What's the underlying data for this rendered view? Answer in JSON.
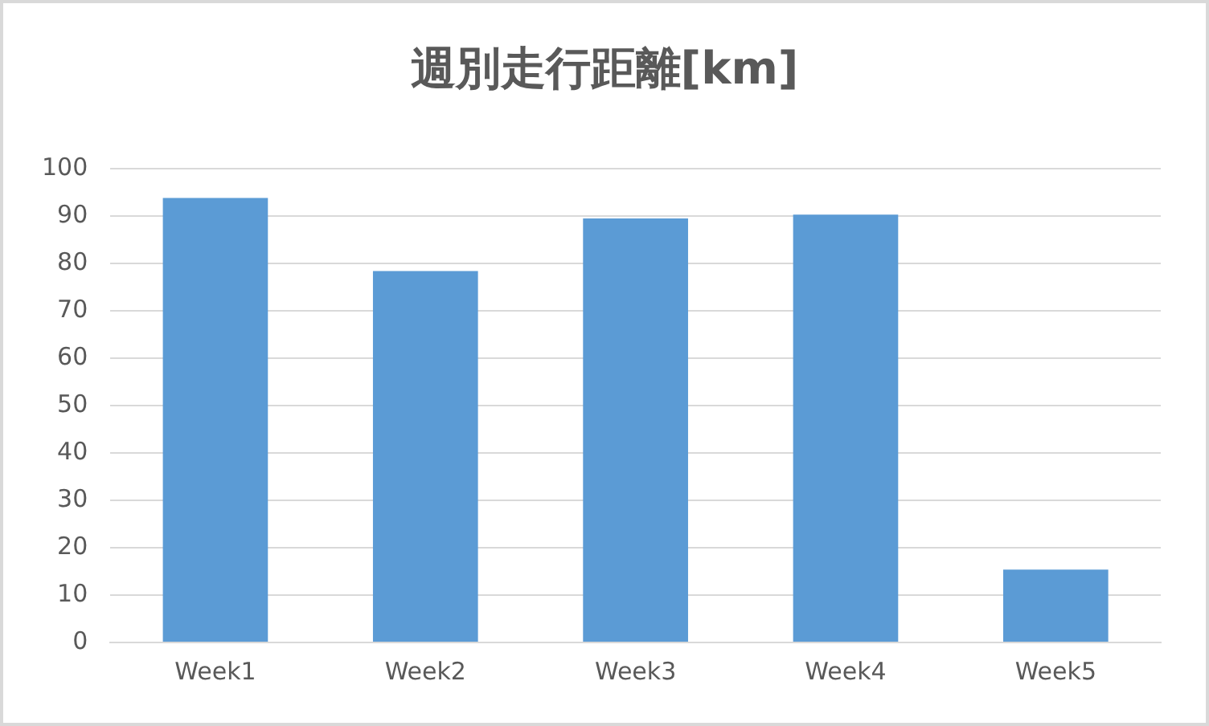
{
  "chart_data": {
    "type": "bar",
    "title": "週別走行距離[km]",
    "categories": [
      "Week1",
      "Week2",
      "Week3",
      "Week4",
      "Week5"
    ],
    "values": [
      93.8,
      78.4,
      89.5,
      90.3,
      15.4
    ],
    "color": "#5b9bd5",
    "ylim": [
      0,
      100
    ],
    "yticks": [
      0,
      10,
      20,
      30,
      40,
      50,
      60,
      70,
      80,
      90,
      100
    ],
    "grid": "y",
    "legend": false
  }
}
